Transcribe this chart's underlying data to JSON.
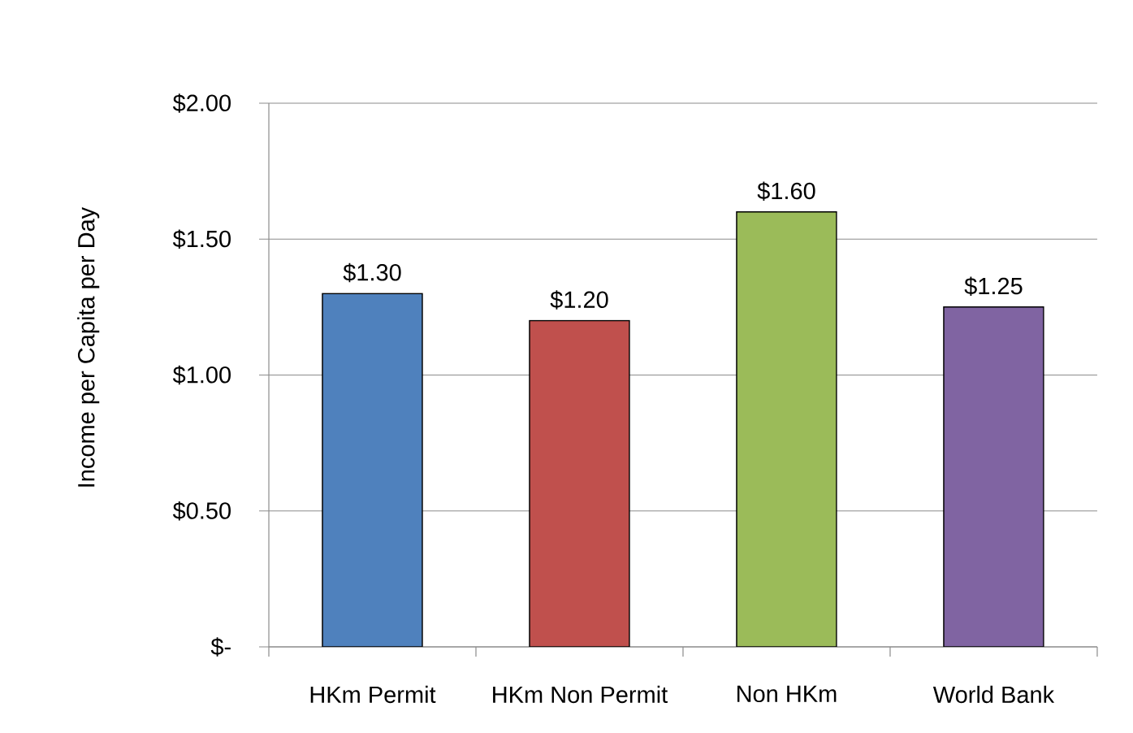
{
  "chart_data": {
    "type": "bar",
    "ylabel": "Income per Capita per Day",
    "categories": [
      "HKm Permit",
      "HKm Non Permit",
      "Non HKm",
      "World Bank"
    ],
    "values": [
      1.3,
      1.2,
      1.6,
      1.25
    ],
    "colors": [
      "#4f81bd",
      "#c0504d",
      "#9bbb59",
      "#8064a2"
    ],
    "value_labels": [
      "$1.30",
      "$1.20",
      "$1.60",
      "$1.25"
    ],
    "ylim": [
      0,
      2
    ],
    "yticks": [
      {
        "value": 0,
        "label": "$-"
      },
      {
        "value": 0.5,
        "label": "$0.50"
      },
      {
        "value": 1,
        "label": "$1.00"
      },
      {
        "value": 1.5,
        "label": "$1.50"
      },
      {
        "value": 2,
        "label": "$2.00"
      }
    ],
    "grid": "y"
  }
}
